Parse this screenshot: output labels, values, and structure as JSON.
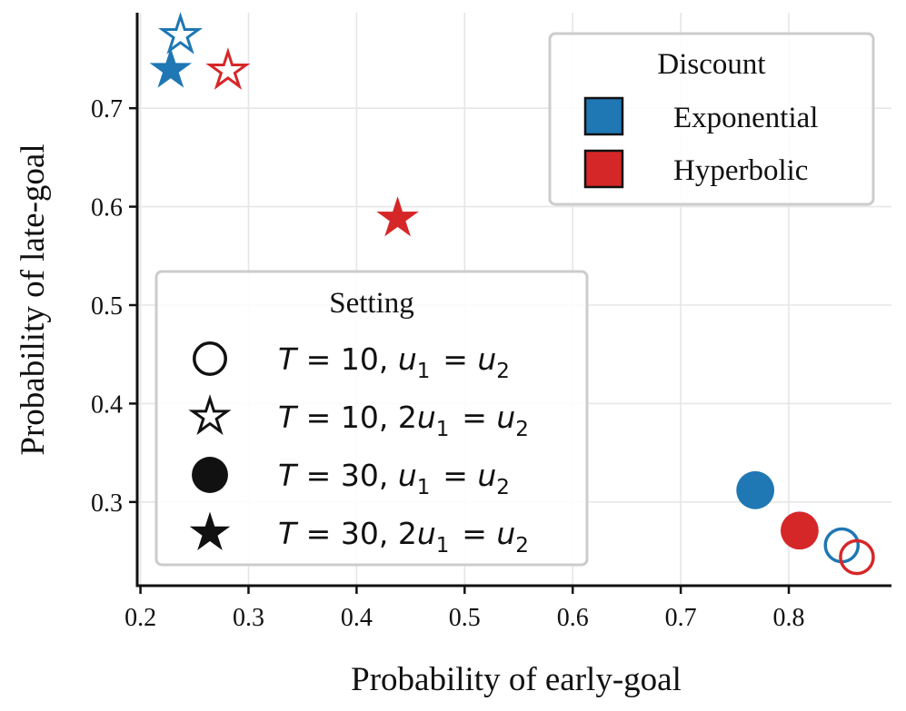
{
  "chart_data": {
    "type": "scatter",
    "xlabel": "Probability of early-goal",
    "ylabel": "Probability of late-goal",
    "xlim": [
      0.197,
      0.895
    ],
    "ylim": [
      0.215,
      0.797
    ],
    "xticks": [
      0.2,
      0.3,
      0.4,
      0.5,
      0.6,
      0.7,
      0.8
    ],
    "yticks": [
      0.3,
      0.4,
      0.5,
      0.6,
      0.7
    ],
    "xtick_labels": [
      "0.2",
      "0.3",
      "0.4",
      "0.5",
      "0.6",
      "0.7",
      "0.8"
    ],
    "ytick_labels": [
      "0.3",
      "0.4",
      "0.5",
      "0.6",
      "0.7"
    ],
    "grid": true,
    "colors": {
      "Exponential": "#1f77b4",
      "Hyperbolic": "#d62728"
    },
    "points": [
      {
        "discount": "Exponential",
        "setting": "T10_equal",
        "x": 0.849,
        "y": 0.256
      },
      {
        "discount": "Hyperbolic",
        "setting": "T10_equal",
        "x": 0.863,
        "y": 0.244
      },
      {
        "discount": "Exponential",
        "setting": "T10_double",
        "x": 0.237,
        "y": 0.774
      },
      {
        "discount": "Hyperbolic",
        "setting": "T10_double",
        "x": 0.281,
        "y": 0.738
      },
      {
        "discount": "Exponential",
        "setting": "T30_equal",
        "x": 0.769,
        "y": 0.312
      },
      {
        "discount": "Hyperbolic",
        "setting": "T30_equal",
        "x": 0.81,
        "y": 0.271
      },
      {
        "discount": "Exponential",
        "setting": "T30_double",
        "x": 0.228,
        "y": 0.739
      },
      {
        "discount": "Hyperbolic",
        "setting": "T30_double",
        "x": 0.438,
        "y": 0.588
      }
    ],
    "legend_discount": {
      "title": "Discount",
      "placement": "top-right",
      "entries": [
        {
          "label": "Exponential",
          "color": "#1f77b4"
        },
        {
          "label": "Hyperbolic",
          "color": "#d62728"
        }
      ]
    },
    "legend_setting": {
      "title": "Setting",
      "placement": "lower-left",
      "entries": [
        {
          "key": "T10_equal",
          "marker": "open-circle",
          "label": "T = 10, u1 = u2"
        },
        {
          "key": "T10_double",
          "marker": "open-star",
          "label": "T = 10, 2u1 = u2"
        },
        {
          "key": "T30_equal",
          "marker": "filled-circle",
          "label": "T = 30, u1 = u2"
        },
        {
          "key": "T30_double",
          "marker": "filled-star",
          "label": "T = 30, 2u1 = u2"
        }
      ]
    }
  }
}
